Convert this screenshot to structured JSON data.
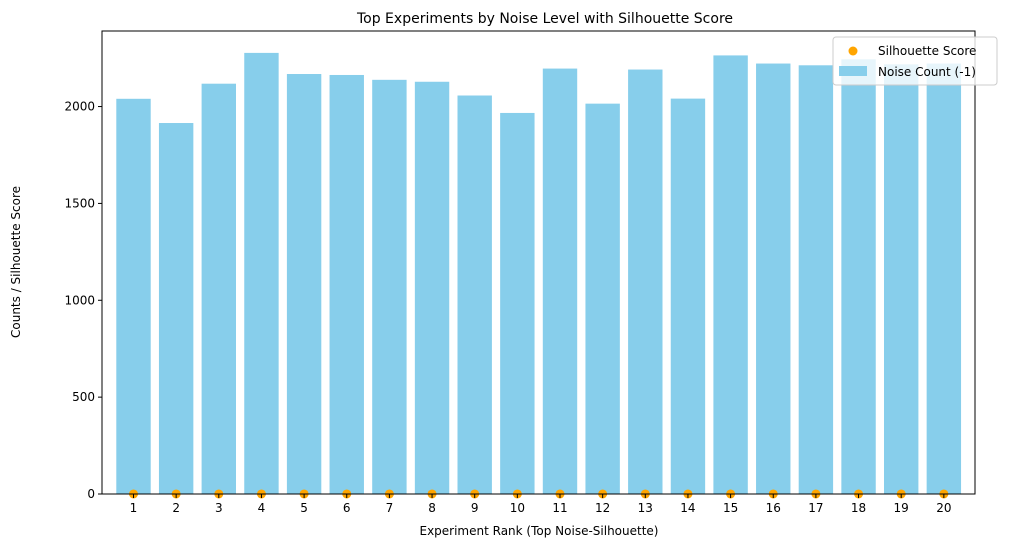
{
  "chart_data": {
    "type": "bar",
    "title": "Top Experiments by Noise Level with Silhouette Score",
    "xlabel": "Experiment Rank (Top Noise-Silhouette)",
    "ylabel": "Counts / Silhouette Score",
    "categories": [
      "1",
      "2",
      "3",
      "4",
      "5",
      "6",
      "7",
      "8",
      "9",
      "10",
      "11",
      "12",
      "13",
      "14",
      "15",
      "16",
      "17",
      "18",
      "19",
      "20"
    ],
    "ylim": [
      0,
      2390
    ],
    "yticks": [
      0,
      500,
      1000,
      1500,
      2000
    ],
    "grid": false,
    "legend_position": "top-right",
    "series": [
      {
        "name": "Noise Count (-1)",
        "kind": "bar",
        "color": "#87ceeb",
        "values": [
          2040,
          1915,
          2118,
          2277,
          2168,
          2163,
          2138,
          2128,
          2057,
          1967,
          2196,
          2015,
          2191,
          2041,
          2264,
          2222,
          2213,
          2244,
          2218,
          2222
        ]
      },
      {
        "name": "Silhouette Score",
        "kind": "scatter",
        "color": "#ffa500",
        "values": [
          0.1,
          0.1,
          0.1,
          0.1,
          0.1,
          0.1,
          0.1,
          0.1,
          0.1,
          0.1,
          0.1,
          0.1,
          0.1,
          0.1,
          0.1,
          0.1,
          0.1,
          0.1,
          0.1,
          0.1
        ]
      }
    ]
  }
}
